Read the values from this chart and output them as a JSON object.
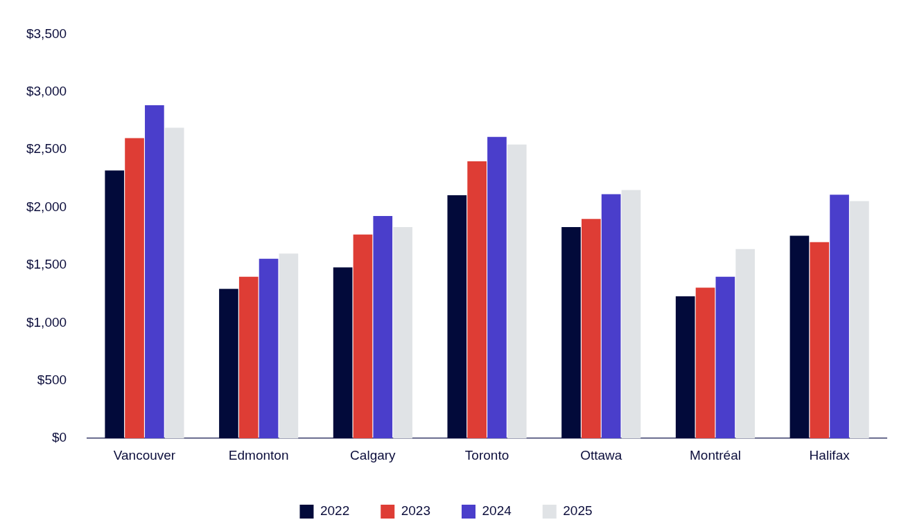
{
  "chart_data": {
    "type": "bar",
    "categories": [
      "Vancouver",
      "Edmonton",
      "Calgary",
      "Toronto",
      "Ottawa",
      "Montréal",
      "Halifax"
    ],
    "series": [
      {
        "name": "2022",
        "color": "#020a3a",
        "values": [
          2320,
          1295,
          1480,
          2105,
          1830,
          1230,
          1755
        ]
      },
      {
        "name": "2023",
        "color": "#de3d35",
        "values": [
          2600,
          1400,
          1765,
          2400,
          1900,
          1305,
          1700
        ]
      },
      {
        "name": "2024",
        "color": "#4a3ecb",
        "values": [
          2885,
          1555,
          1925,
          2610,
          2115,
          1400,
          2110
        ]
      },
      {
        "name": "2025",
        "color": "#e0e3e6",
        "values": [
          2690,
          1600,
          1830,
          2545,
          2150,
          1640,
          2055
        ]
      }
    ],
    "ylim": [
      0,
      3500
    ],
    "yticks": [
      {
        "value": 0,
        "label": "$0"
      },
      {
        "value": 500,
        "label": "$500"
      },
      {
        "value": 1000,
        "label": "$1,000"
      },
      {
        "value": 1500,
        "label": "$1,500"
      },
      {
        "value": 2000,
        "label": "$2,000"
      },
      {
        "value": 2500,
        "label": "$2,500"
      },
      {
        "value": 3000,
        "label": "$3,000"
      },
      {
        "value": 3500,
        "label": "$3,500"
      }
    ],
    "grid": false,
    "legend": "bottom"
  }
}
